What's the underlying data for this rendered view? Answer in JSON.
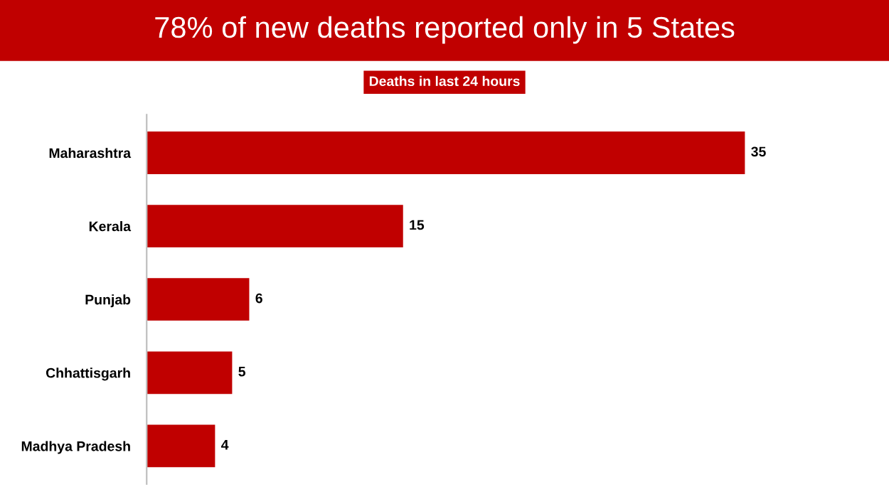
{
  "chart_data": {
    "type": "bar",
    "orientation": "horizontal",
    "title": "78% of new deaths reported only in 5 States",
    "subtitle": "Deaths in last 24 hours",
    "categories": [
      "Maharashtra",
      "Kerala",
      "Punjab",
      "Chhattisgarh",
      "Madhya Pradesh"
    ],
    "values": [
      35,
      15,
      6,
      5,
      4
    ],
    "color": "#c00000",
    "data_labels": true,
    "grid": false,
    "legend": false,
    "tick_labels": "y"
  }
}
